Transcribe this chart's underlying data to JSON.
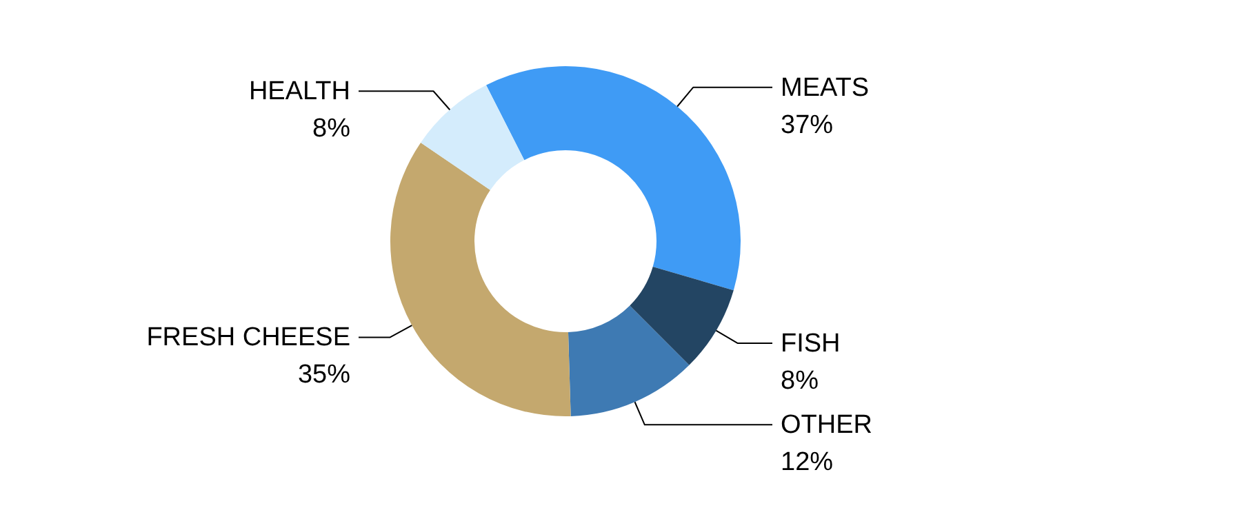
{
  "chart_data": {
    "type": "donut",
    "categories": [
      "MEATS",
      "FISH",
      "OTHER",
      "FRESH CHEESE",
      "HEALTH"
    ],
    "values": [
      37,
      8,
      12,
      35,
      8
    ],
    "colors": [
      "#3f9bf5",
      "#234563",
      "#3e7ab3",
      "#c4a86e",
      "#d4ecfc"
    ],
    "value_labels": [
      "37%",
      "8%",
      "12%",
      "35%",
      "8%"
    ]
  }
}
